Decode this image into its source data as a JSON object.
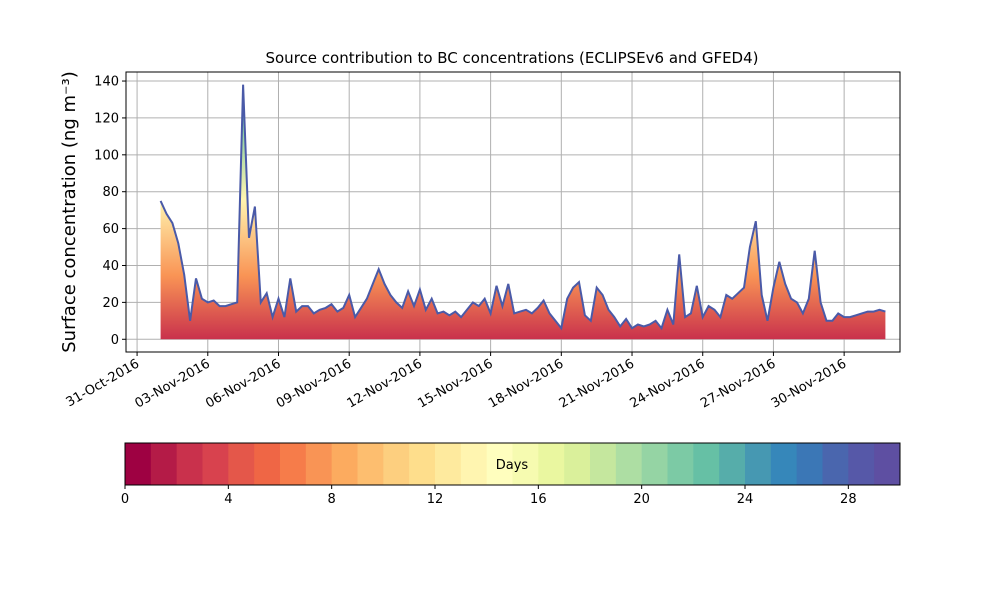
{
  "chart_data": {
    "type": "area",
    "title": "Source contribution to BC concentrations (ECLIPSEv6 and GFED4)",
    "y_label": "Surface concentration (ng m⁻³)",
    "grid": true,
    "color": "#4a5aa8",
    "xlim": [
      -0.47,
      32.37
    ],
    "ylim": [
      -6.9,
      144.9
    ],
    "yticks": [
      0,
      20,
      40,
      60,
      80,
      100,
      120,
      140
    ],
    "xticks": [
      {
        "value": 0,
        "label": "31-Oct-2016"
      },
      {
        "value": 3,
        "label": "03-Nov-2016"
      },
      {
        "value": 6,
        "label": "06-Nov-2016"
      },
      {
        "value": 9,
        "label": "09-Nov-2016"
      },
      {
        "value": 12,
        "label": "12-Nov-2016"
      },
      {
        "value": 15,
        "label": "15-Nov-2016"
      },
      {
        "value": 18,
        "label": "18-Nov-2016"
      },
      {
        "value": 21,
        "label": "21-Nov-2016"
      },
      {
        "value": 24,
        "label": "24-Nov-2016"
      },
      {
        "value": 27,
        "label": "27-Nov-2016"
      },
      {
        "value": 30,
        "label": "30-Nov-2016"
      }
    ],
    "x": [
      1,
      1.25,
      1.5,
      1.75,
      2,
      2.25,
      2.5,
      2.75,
      3,
      3.25,
      3.5,
      3.75,
      4,
      4.25,
      4.5,
      4.75,
      5,
      5.25,
      5.5,
      5.75,
      6,
      6.25,
      6.5,
      6.75,
      7,
      7.25,
      7.5,
      7.75,
      8,
      8.25,
      8.5,
      8.75,
      9,
      9.25,
      9.5,
      9.75,
      10,
      10.25,
      10.5,
      10.75,
      11,
      11.25,
      11.5,
      11.75,
      12,
      12.25,
      12.5,
      12.75,
      13,
      13.25,
      13.5,
      13.75,
      14,
      14.25,
      14.5,
      14.75,
      15,
      15.25,
      15.5,
      15.75,
      16,
      16.25,
      16.5,
      16.75,
      17,
      17.25,
      17.5,
      17.75,
      18,
      18.25,
      18.5,
      18.75,
      19,
      19.25,
      19.5,
      19.75,
      20,
      20.25,
      20.5,
      20.75,
      21,
      21.25,
      21.5,
      21.75,
      22,
      22.25,
      22.5,
      22.75,
      23,
      23.25,
      23.5,
      23.75,
      24,
      24.25,
      24.5,
      24.75,
      25,
      25.25,
      25.5,
      25.75,
      26,
      26.25,
      26.5,
      26.75,
      27,
      27.25,
      27.5,
      27.75,
      28,
      28.25,
      28.5,
      28.75,
      29,
      29.25,
      29.5,
      29.75,
      30,
      30.25,
      30.5,
      30.75,
      31,
      31.25,
      31.5,
      31.75
    ],
    "values": [
      75,
      68,
      63,
      52,
      35,
      10,
      33,
      22,
      20,
      21,
      18,
      18,
      19,
      20,
      138,
      55,
      72,
      20,
      25,
      12,
      22,
      12,
      33,
      15,
      18,
      18,
      14,
      16,
      17,
      19,
      15,
      17,
      24,
      12,
      17,
      22,
      30,
      38,
      30,
      24,
      20,
      17,
      26,
      18,
      27,
      16,
      22,
      14,
      15,
      13,
      15,
      12,
      16,
      20,
      18,
      22,
      14,
      29,
      18,
      30,
      14,
      15,
      16,
      14,
      17,
      21,
      14,
      10,
      6,
      22,
      28,
      31,
      13,
      10,
      28,
      24,
      16,
      12,
      7,
      11,
      6,
      8,
      7,
      8,
      10,
      6,
      16,
      8,
      46,
      12,
      14,
      29,
      12,
      18,
      16,
      12,
      24,
      22,
      25,
      28,
      50,
      64,
      24,
      10,
      28,
      42,
      30,
      22,
      20,
      14,
      22,
      48,
      20,
      10,
      10,
      14,
      12,
      12,
      13,
      14,
      15,
      15,
      16,
      15
    ],
    "colorbar": {
      "label": "Days",
      "lim": [
        0,
        30
      ],
      "ticks": [
        0,
        4,
        8,
        12,
        16,
        20,
        24,
        28
      ],
      "colors": [
        "#9e0142",
        "#b41b47",
        "#c9314c",
        "#d8424e",
        "#e4574a",
        "#ef6645",
        "#f67c4a",
        "#f99455",
        "#fcab5f",
        "#fdbe6f",
        "#fdcf7f",
        "#fede8c",
        "#feea9e",
        "#fff5b0",
        "#fffebe",
        "#f6fbb0",
        "#eaf7a0",
        "#daf09b",
        "#c5e79e",
        "#addea3",
        "#95d4a4",
        "#7ccaa5",
        "#66c0a5",
        "#56adaa",
        "#4698b2",
        "#3687ba",
        "#3b77b6",
        "#4a66ae",
        "#5658a8",
        "#5e4fa2"
      ]
    }
  }
}
